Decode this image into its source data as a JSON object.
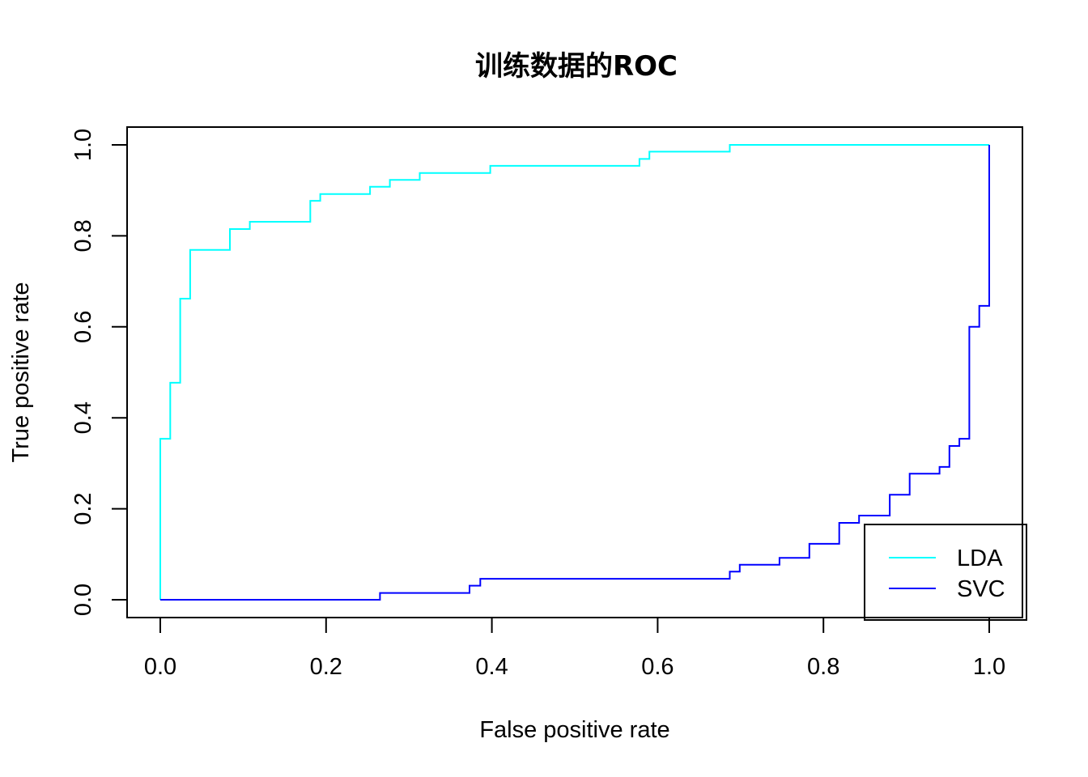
{
  "chart_data": {
    "type": "line",
    "title": "训练数据的ROC",
    "xlabel": "False positive rate",
    "ylabel": "True positive rate",
    "xlim": [
      0,
      1
    ],
    "ylim": [
      0,
      1
    ],
    "x_ticks": [
      "0.0",
      "0.2",
      "0.4",
      "0.6",
      "0.8",
      "1.0"
    ],
    "y_ticks": [
      "0.0",
      "0.2",
      "0.4",
      "0.6",
      "0.8",
      "1.0"
    ],
    "grid": false,
    "legend_position": "bottom-right",
    "series": [
      {
        "name": "LDA",
        "color": "#00ffff",
        "points": [
          [
            0,
            0
          ],
          [
            0,
            0.354
          ],
          [
            0.012,
            0.354
          ],
          [
            0.012,
            0.477
          ],
          [
            0.024,
            0.477
          ],
          [
            0.024,
            0.662
          ],
          [
            0.036,
            0.662
          ],
          [
            0.036,
            0.769
          ],
          [
            0.084,
            0.769
          ],
          [
            0.084,
            0.815
          ],
          [
            0.108,
            0.815
          ],
          [
            0.108,
            0.831
          ],
          [
            0.181,
            0.831
          ],
          [
            0.181,
            0.877
          ],
          [
            0.193,
            0.877
          ],
          [
            0.193,
            0.892
          ],
          [
            0.253,
            0.892
          ],
          [
            0.253,
            0.908
          ],
          [
            0.277,
            0.908
          ],
          [
            0.277,
            0.923
          ],
          [
            0.313,
            0.923
          ],
          [
            0.313,
            0.938
          ],
          [
            0.398,
            0.938
          ],
          [
            0.398,
            0.954
          ],
          [
            0.578,
            0.954
          ],
          [
            0.578,
            0.969
          ],
          [
            0.59,
            0.969
          ],
          [
            0.59,
            0.985
          ],
          [
            0.687,
            0.985
          ],
          [
            0.687,
            1.0
          ],
          [
            1.0,
            1.0
          ]
        ]
      },
      {
        "name": "SVC",
        "color": "#0000ff",
        "points": [
          [
            0,
            0
          ],
          [
            0.265,
            0
          ],
          [
            0.265,
            0.015
          ],
          [
            0.373,
            0.015
          ],
          [
            0.373,
            0.031
          ],
          [
            0.386,
            0.031
          ],
          [
            0.386,
            0.046
          ],
          [
            0.687,
            0.046
          ],
          [
            0.687,
            0.062
          ],
          [
            0.699,
            0.062
          ],
          [
            0.699,
            0.077
          ],
          [
            0.747,
            0.077
          ],
          [
            0.747,
            0.092
          ],
          [
            0.783,
            0.092
          ],
          [
            0.783,
            0.123
          ],
          [
            0.819,
            0.123
          ],
          [
            0.819,
            0.169
          ],
          [
            0.843,
            0.169
          ],
          [
            0.843,
            0.185
          ],
          [
            0.88,
            0.185
          ],
          [
            0.88,
            0.231
          ],
          [
            0.904,
            0.231
          ],
          [
            0.904,
            0.277
          ],
          [
            0.94,
            0.277
          ],
          [
            0.94,
            0.292
          ],
          [
            0.952,
            0.292
          ],
          [
            0.952,
            0.338
          ],
          [
            0.964,
            0.338
          ],
          [
            0.964,
            0.354
          ],
          [
            0.976,
            0.354
          ],
          [
            0.976,
            0.6
          ],
          [
            0.988,
            0.6
          ],
          [
            0.988,
            0.646
          ],
          [
            1.0,
            0.646
          ],
          [
            1.0,
            1.0
          ]
        ]
      }
    ]
  }
}
